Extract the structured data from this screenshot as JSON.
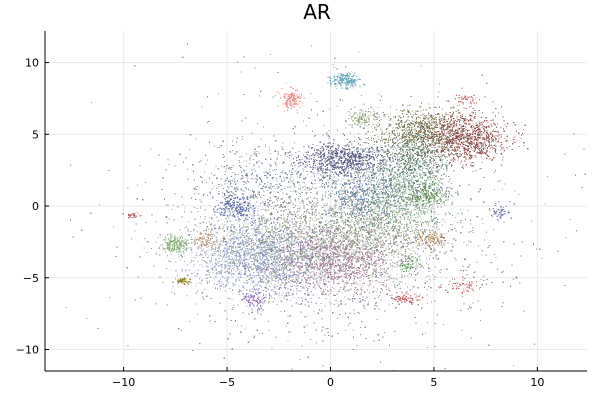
{
  "chart_data": {
    "type": "scatter",
    "title": "AR",
    "xlabel": "",
    "ylabel": "",
    "xlim": [
      -13.8,
      12.4
    ],
    "ylim": [
      -11.5,
      12.2
    ],
    "xticks": [
      -10,
      -5,
      0,
      5,
      10
    ],
    "yticks": [
      -10,
      -5,
      0,
      5,
      10
    ],
    "grid": true,
    "legend": "none",
    "clusters": [
      {
        "cx": -3.5,
        "cy": -3.6,
        "sx": 1.5,
        "sy": 1.3,
        "n": 1500,
        "color": "#8ea0c8"
      },
      {
        "cx": 0.2,
        "cy": -3.6,
        "sx": 1.6,
        "sy": 1.2,
        "n": 1300,
        "color": "#a57a98"
      },
      {
        "cx": -1.5,
        "cy": -2.4,
        "sx": 2.4,
        "sy": 1.8,
        "n": 1200,
        "color": "#8e9a7c"
      },
      {
        "cx": 2.3,
        "cy": -1.2,
        "sx": 1.7,
        "sy": 1.5,
        "n": 900,
        "color": "#7c9a6c"
      },
      {
        "cx": 0.6,
        "cy": 3.3,
        "sx": 1.1,
        "sy": 0.6,
        "n": 700,
        "color": "#4b4b7a"
      },
      {
        "cx": 3.3,
        "cy": 1.4,
        "sx": 1.2,
        "sy": 1.4,
        "n": 800,
        "color": "#6c9a8a"
      },
      {
        "cx": 4.4,
        "cy": 5.2,
        "sx": 1.0,
        "sy": 0.8,
        "n": 750,
        "color": "#6e6a3c"
      },
      {
        "cx": 6.6,
        "cy": 4.8,
        "sx": 1.0,
        "sy": 0.8,
        "n": 850,
        "color": "#8a3e3c"
      },
      {
        "cx": 4.0,
        "cy": 3.4,
        "sx": 0.9,
        "sy": 0.9,
        "n": 450,
        "color": "#4a6a5a"
      },
      {
        "cx": 4.6,
        "cy": 0.8,
        "sx": 0.5,
        "sy": 0.4,
        "n": 220,
        "color": "#5a8a4a"
      },
      {
        "cx": -4.6,
        "cy": 0.0,
        "sx": 0.45,
        "sy": 0.45,
        "n": 200,
        "color": "#4a5aa8"
      },
      {
        "cx": -7.6,
        "cy": -2.6,
        "sx": 0.35,
        "sy": 0.3,
        "n": 200,
        "color": "#7aaa6a"
      },
      {
        "cx": -6.1,
        "cy": -2.4,
        "sx": 0.3,
        "sy": 0.3,
        "n": 90,
        "color": "#b08a6a"
      },
      {
        "cx": -7.2,
        "cy": -5.2,
        "sx": 0.2,
        "sy": 0.1,
        "n": 60,
        "color": "#8a7a10"
      },
      {
        "cx": 0.7,
        "cy": 8.8,
        "sx": 0.35,
        "sy": 0.25,
        "n": 220,
        "color": "#5aa4b8"
      },
      {
        "cx": -1.9,
        "cy": 7.5,
        "sx": 0.25,
        "sy": 0.35,
        "n": 140,
        "color": "#e8807a"
      },
      {
        "cx": 1.6,
        "cy": 6.2,
        "sx": 0.4,
        "sy": 0.3,
        "n": 120,
        "color": "#8a9a6a"
      },
      {
        "cx": 4.8,
        "cy": -2.3,
        "sx": 0.4,
        "sy": 0.3,
        "n": 140,
        "color": "#b08a5a"
      },
      {
        "cx": 1.5,
        "cy": 1.0,
        "sx": 0.9,
        "sy": 0.9,
        "n": 400,
        "color": "#5a7a9a"
      },
      {
        "cx": -3.2,
        "cy": 2.0,
        "sx": 1.6,
        "sy": 1.0,
        "n": 300,
        "color": "#5a7a8a"
      },
      {
        "cx": -3.7,
        "cy": -6.5,
        "sx": 0.3,
        "sy": 0.4,
        "n": 80,
        "color": "#7a4aa8"
      },
      {
        "cx": 3.6,
        "cy": -6.4,
        "sx": 0.4,
        "sy": 0.2,
        "n": 80,
        "color": "#c05050"
      },
      {
        "cx": 6.4,
        "cy": -5.5,
        "sx": 0.4,
        "sy": 0.2,
        "n": 60,
        "color": "#c05050"
      },
      {
        "cx": 6.5,
        "cy": 7.4,
        "sx": 0.4,
        "sy": 0.3,
        "n": 50,
        "color": "#b04a4a"
      },
      {
        "cx": 8.2,
        "cy": -0.3,
        "sx": 0.3,
        "sy": 0.3,
        "n": 60,
        "color": "#6a6aa8"
      },
      {
        "cx": -9.6,
        "cy": -0.6,
        "sx": 0.3,
        "sy": 0.1,
        "n": 30,
        "color": "#a04a4a"
      },
      {
        "cx": 3.8,
        "cy": -4.1,
        "sx": 0.3,
        "sy": 0.2,
        "n": 60,
        "color": "#5a9a5a"
      },
      {
        "cx": 0.0,
        "cy": -2.0,
        "sx": 4.0,
        "sy": 3.8,
        "n": 1400,
        "color": "#6a6a8a"
      },
      {
        "cx": 0.5,
        "cy": 0.0,
        "sx": 5.0,
        "sy": 5.0,
        "n": 420,
        "color": "#7a7a7a"
      }
    ]
  }
}
